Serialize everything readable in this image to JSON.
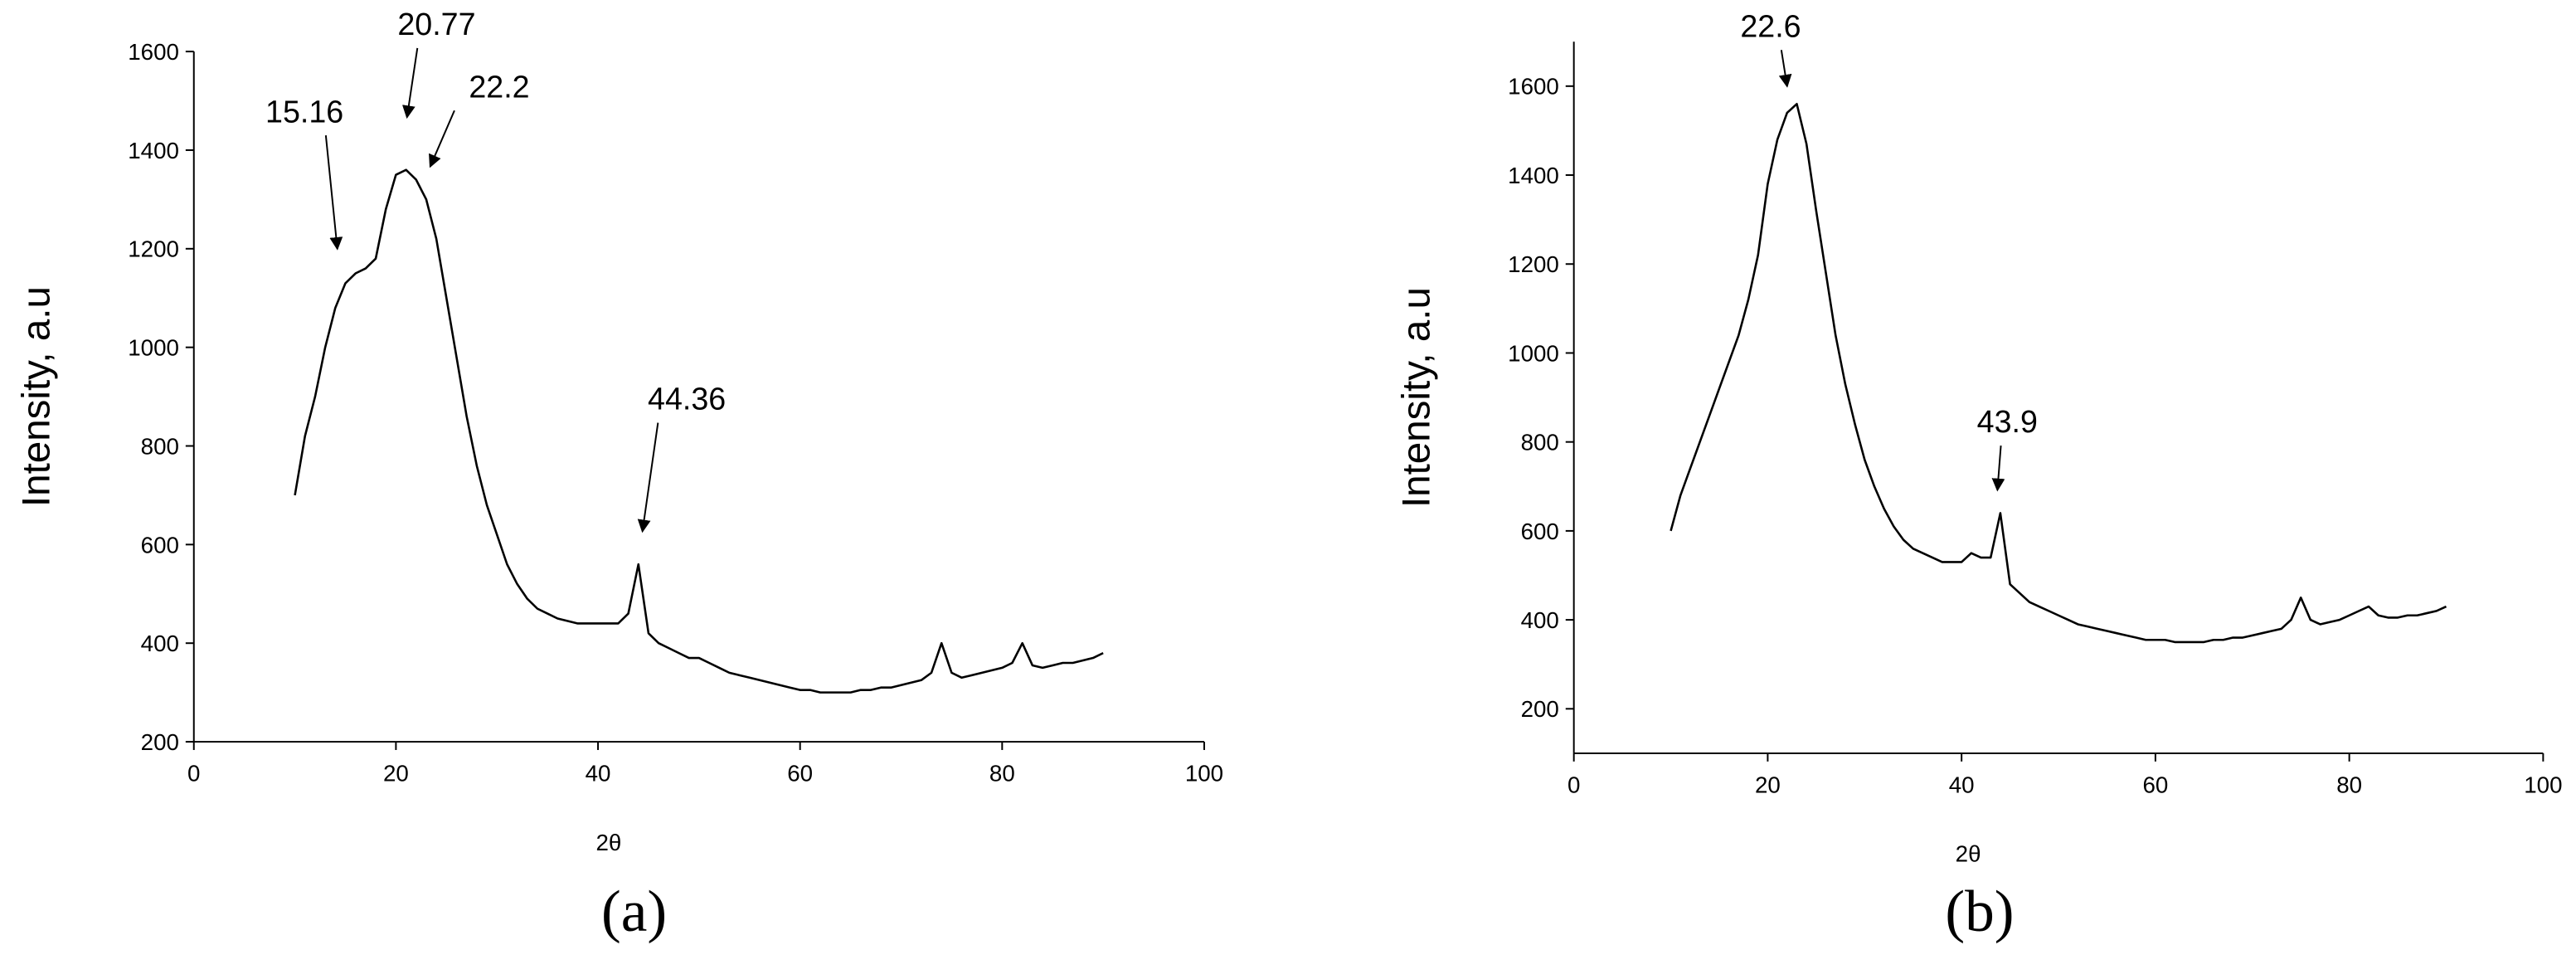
{
  "chart_data": [
    {
      "type": "line",
      "caption": "(a)",
      "x_label": "2θ",
      "y_label": "Intensity, a.u",
      "xlim": [
        0,
        100
      ],
      "xticks": [
        0,
        20,
        40,
        60,
        80,
        100
      ],
      "ylim": [
        200,
        1600
      ],
      "yticks": [
        200,
        400,
        600,
        800,
        1000,
        1200,
        1400,
        1600
      ],
      "color": "#000000",
      "x": [
        10,
        11,
        12,
        13,
        14,
        15,
        16,
        17,
        18,
        19,
        20,
        21,
        22,
        23,
        24,
        25,
        26,
        27,
        28,
        29,
        30,
        31,
        32,
        33,
        34,
        35,
        36,
        37,
        38,
        39,
        40,
        41,
        42,
        43,
        44,
        45,
        46,
        47,
        48,
        49,
        50,
        51,
        52,
        53,
        54,
        55,
        56,
        57,
        58,
        59,
        60,
        61,
        62,
        63,
        64,
        65,
        66,
        67,
        68,
        69,
        70,
        71,
        72,
        73,
        74,
        75,
        76,
        77,
        78,
        79,
        80,
        81,
        82,
        83,
        84,
        85,
        86,
        87,
        88,
        89,
        90
      ],
      "values": [
        700,
        820,
        900,
        1000,
        1080,
        1130,
        1150,
        1160,
        1180,
        1280,
        1350,
        1360,
        1340,
        1300,
        1220,
        1100,
        980,
        860,
        760,
        680,
        620,
        560,
        520,
        490,
        470,
        460,
        450,
        445,
        440,
        440,
        440,
        440,
        440,
        460,
        560,
        420,
        400,
        390,
        380,
        370,
        370,
        360,
        350,
        340,
        335,
        330,
        325,
        320,
        315,
        310,
        305,
        305,
        300,
        300,
        300,
        300,
        305,
        305,
        310,
        310,
        315,
        320,
        325,
        340,
        400,
        340,
        330,
        335,
        340,
        345,
        350,
        360,
        400,
        355,
        350,
        355,
        360,
        360,
        365,
        370,
        380
      ],
      "annotations": [
        {
          "label": "15.16",
          "x": 14.2,
          "y": 1200
        },
        {
          "label": "20.77",
          "x": 21.1,
          "y": 1467
        },
        {
          "label": "22.2",
          "x": 23.4,
          "y": 1367
        },
        {
          "label": "44.36",
          "x": 44.4,
          "y": 627
        }
      ]
    },
    {
      "type": "line",
      "caption": "(b)",
      "x_label": "2θ",
      "y_label": "Intensity, a.u",
      "xlim": [
        0,
        100
      ],
      "xticks": [
        0,
        20,
        40,
        60,
        80,
        100
      ],
      "ylim": [
        100,
        1700
      ],
      "yticks": [
        200,
        400,
        600,
        800,
        1000,
        1200,
        1400,
        1600
      ],
      "color": "#000000",
      "x": [
        10,
        11,
        12,
        13,
        14,
        15,
        16,
        17,
        18,
        19,
        20,
        21,
        22,
        23,
        24,
        25,
        26,
        27,
        28,
        29,
        30,
        31,
        32,
        33,
        34,
        35,
        36,
        37,
        38,
        39,
        40,
        41,
        42,
        43,
        44,
        45,
        46,
        47,
        48,
        49,
        50,
        51,
        52,
        53,
        54,
        55,
        56,
        57,
        58,
        59,
        60,
        61,
        62,
        63,
        64,
        65,
        66,
        67,
        68,
        69,
        70,
        71,
        72,
        73,
        74,
        75,
        76,
        77,
        78,
        79,
        80,
        81,
        82,
        83,
        84,
        85,
        86,
        87,
        88,
        89,
        90
      ],
      "values": [
        600,
        680,
        740,
        800,
        860,
        920,
        980,
        1040,
        1120,
        1220,
        1380,
        1480,
        1540,
        1560,
        1470,
        1320,
        1180,
        1040,
        930,
        840,
        760,
        700,
        650,
        610,
        580,
        560,
        550,
        540,
        530,
        530,
        530,
        550,
        540,
        540,
        640,
        480,
        460,
        440,
        430,
        420,
        410,
        400,
        390,
        385,
        380,
        375,
        370,
        365,
        360,
        355,
        355,
        355,
        350,
        350,
        350,
        350,
        355,
        355,
        360,
        360,
        365,
        370,
        375,
        380,
        400,
        450,
        400,
        390,
        395,
        400,
        410,
        420,
        430,
        410,
        405,
        405,
        410,
        410,
        415,
        420,
        430
      ],
      "annotations": [
        {
          "label": "22.6",
          "x": 22.0,
          "y": 1600
        },
        {
          "label": "43.9",
          "x": 43.7,
          "y": 692
        }
      ]
    }
  ]
}
